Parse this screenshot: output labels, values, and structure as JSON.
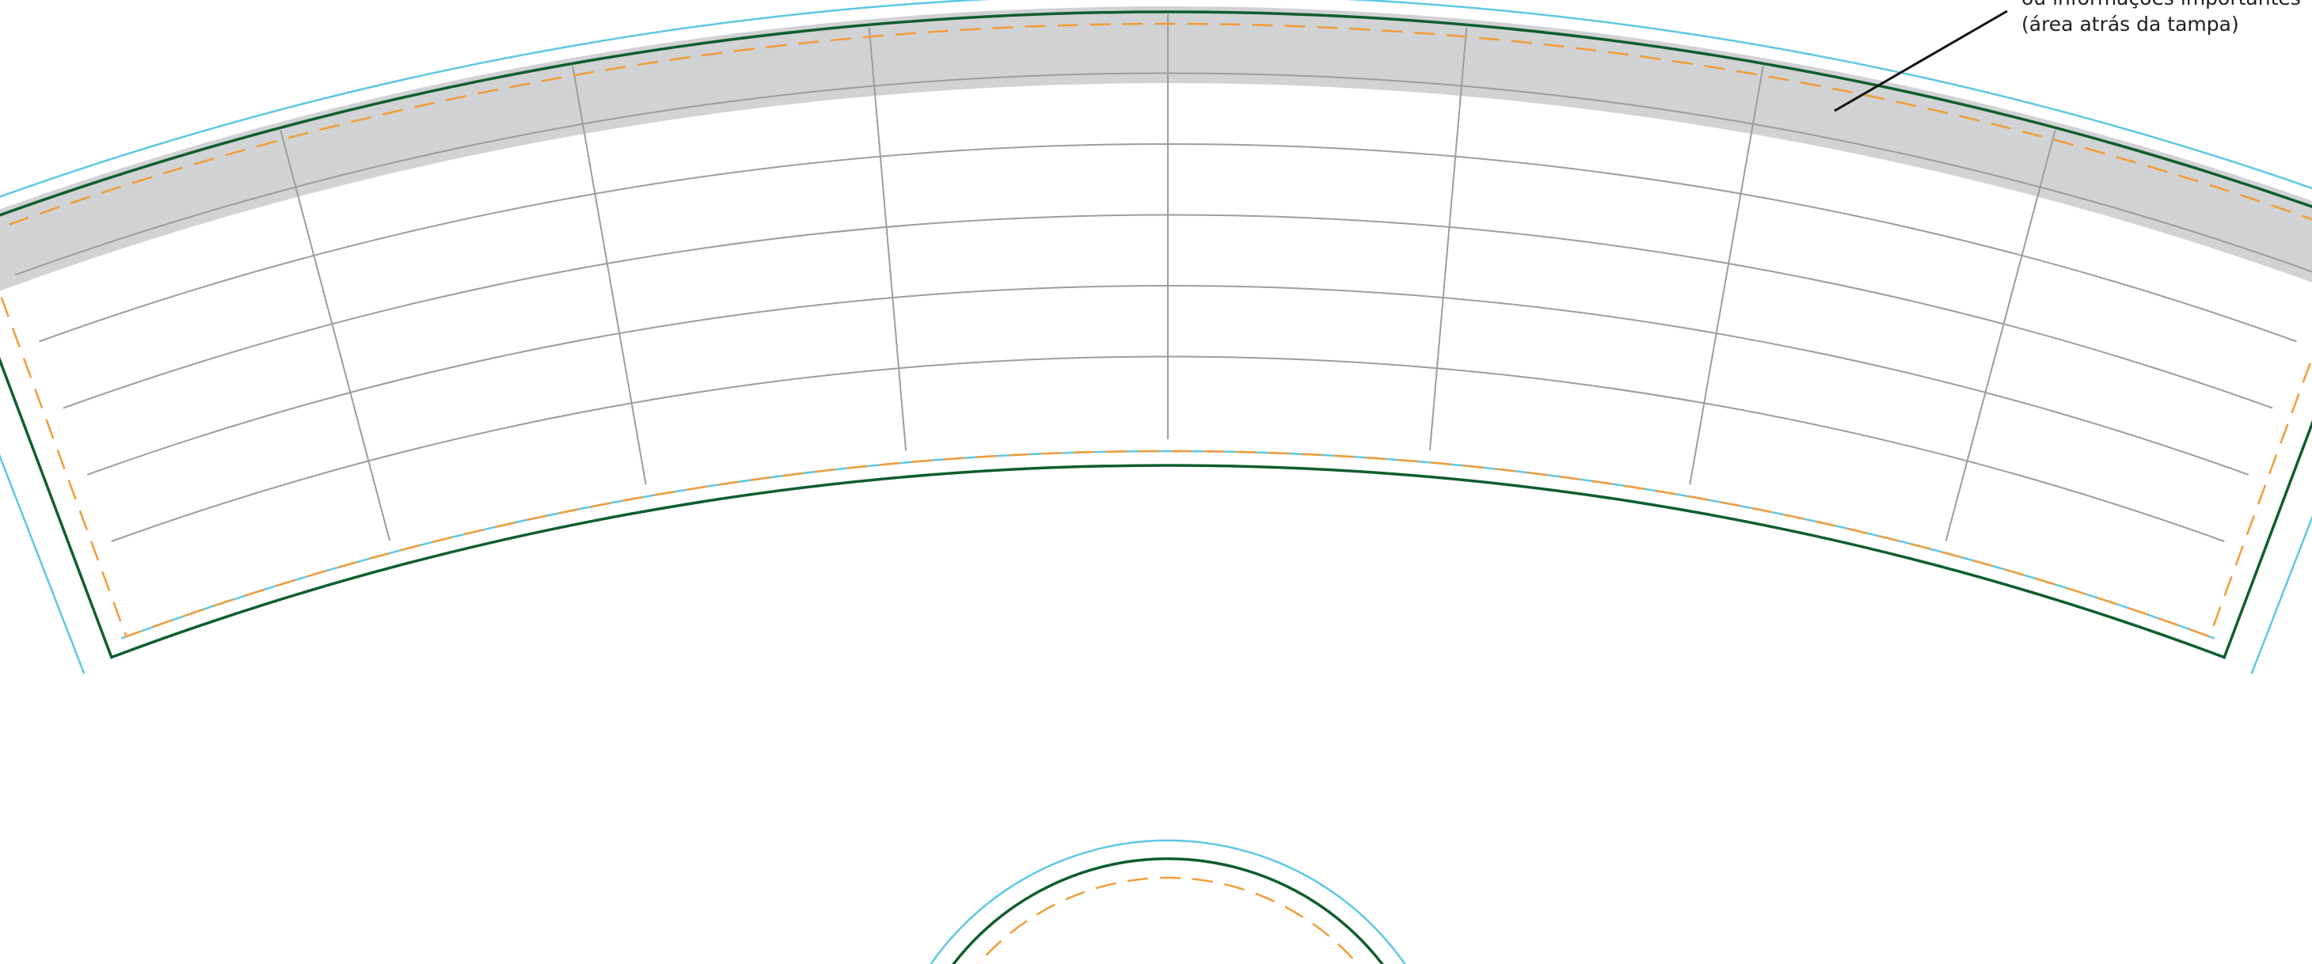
{
  "annotation": {
    "line1": "ou informações importantes",
    "line2": "(área atrás da tampa)"
  },
  "grid": {
    "columns": 8,
    "rows": 6
  },
  "colors": {
    "bleed_line": "#5ec7e3",
    "trim_line": "#0e5e2e",
    "safe_area": "#f29c38",
    "lid_area_fill": "#d1d2d4",
    "grid_line": "#9d9d9d",
    "annotation_pointer": "#111111"
  }
}
